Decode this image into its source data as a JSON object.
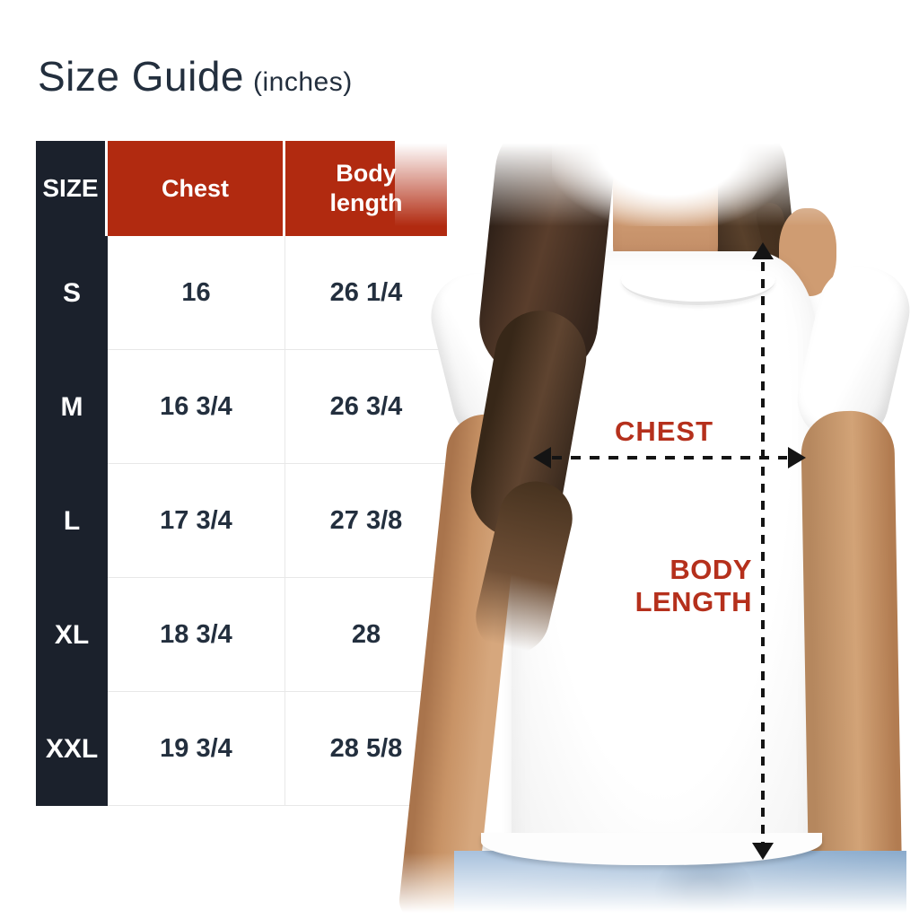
{
  "page": {
    "title": "Size Guide",
    "units_note": "(inches)"
  },
  "size_table": {
    "headers": [
      "SIZE",
      "Chest",
      "Body length"
    ],
    "rows": [
      [
        "S",
        "16",
        "26 1/4"
      ],
      [
        "M",
        "16 3/4",
        "26 3/4"
      ],
      [
        "L",
        "17 3/4",
        "27 3/8"
      ],
      [
        "XL",
        "18 3/4",
        "28"
      ],
      [
        "XXL",
        "19 3/4",
        "28 5/8"
      ]
    ]
  },
  "chart_data": {
    "type": "table",
    "title": "Size Guide (inches)",
    "columns": [
      "SIZE",
      "Chest",
      "Body length"
    ],
    "rows": [
      {
        "size": "S",
        "chest": "16",
        "body_length": "26 1/4"
      },
      {
        "size": "M",
        "chest": "16 3/4",
        "body_length": "26 3/4"
      },
      {
        "size": "L",
        "chest": "17 3/4",
        "body_length": "27 3/8"
      },
      {
        "size": "XL",
        "chest": "18 3/4",
        "body_length": "28"
      },
      {
        "size": "XXL",
        "chest": "19 3/4",
        "body_length": "28 5/8"
      }
    ]
  },
  "diagram": {
    "chest_label": "CHEST",
    "body_length_label": "BODY LENGTH"
  },
  "colors": {
    "title_navy": "#232f3e",
    "header_red": "#b12a10",
    "size_column_dark": "#1b212c",
    "cell_text_navy": "#232f3e",
    "annotation_label_red": "#b5301c",
    "arrow_black": "#141414",
    "jeans_blue": "#8fadd0",
    "skin_tone": "#c9956c",
    "hair_brown": "#4a3426"
  }
}
